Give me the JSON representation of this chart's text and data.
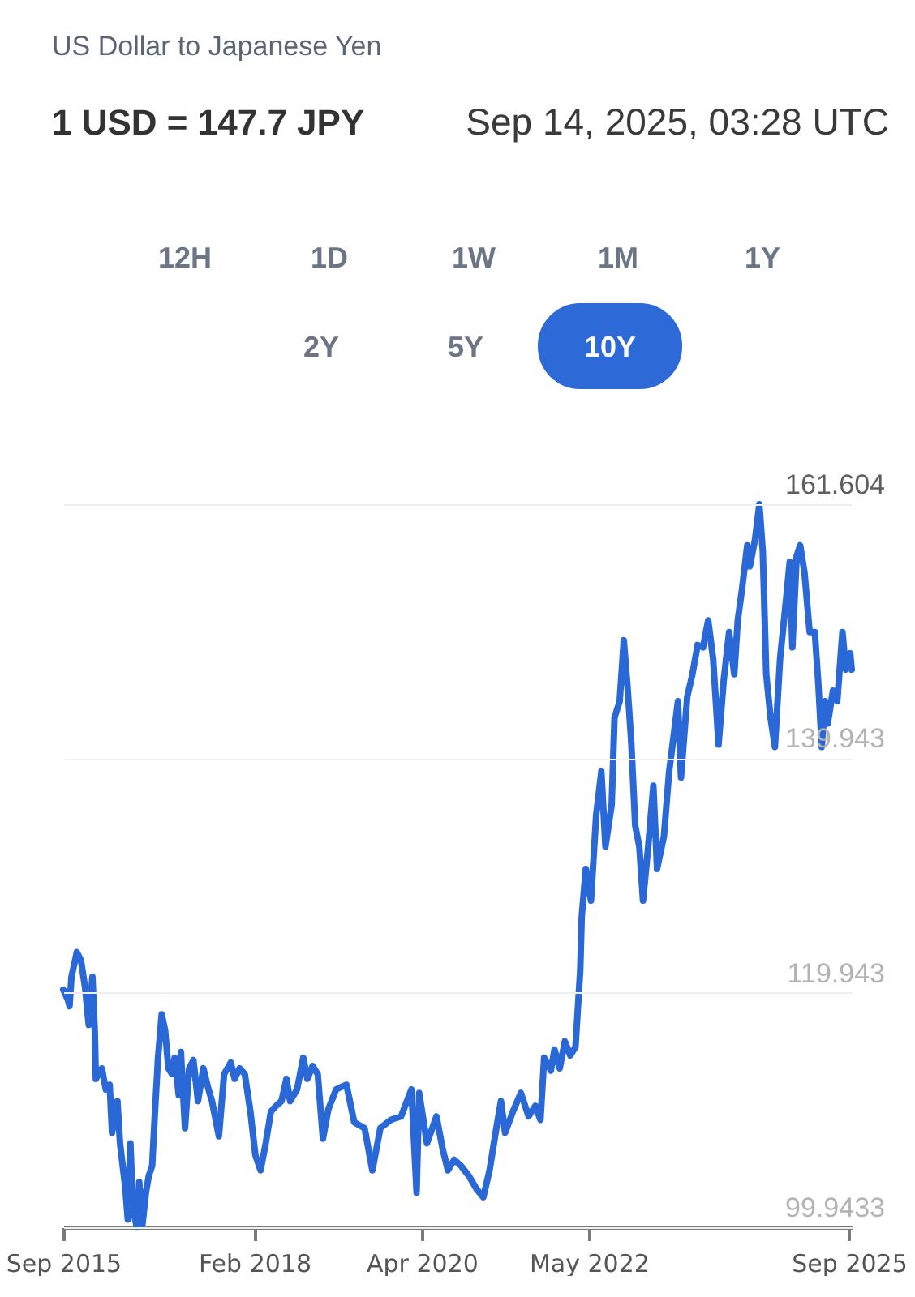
{
  "chart_data": {
    "type": "line",
    "title": "US Dollar to Japanese Yen",
    "subtitle": "1 USD = 147.7 JPY",
    "annotations": [
      "Sep 14, 2025, 03:28 UTC",
      "12H",
      "1D",
      "1W",
      "1M",
      "1Y",
      "2Y",
      "5Y",
      "10Y"
    ],
    "x": [
      "2015-09-14",
      "2015-10-06",
      "2015-10-13",
      "2015-10-22",
      "2015-11-16",
      "2015-12-05",
      "2015-12-24",
      "2016-01-10",
      "2016-01-27",
      "2016-02-07",
      "2016-02-12",
      "2016-03-11",
      "2016-03-29",
      "2016-04-16",
      "2016-04-27",
      "2016-05-22",
      "2016-06-03",
      "2016-06-27",
      "2016-07-09",
      "2016-07-21",
      "2016-08-02",
      "2016-08-19",
      "2016-08-31",
      "2016-09-15",
      "2016-10-01",
      "2016-10-14",
      "2016-10-30",
      "2016-11-12",
      "2016-11-26",
      "2016-12-13",
      "2016-12-29",
      "2017-01-13",
      "2017-01-30",
      "2017-02-11",
      "2017-03-02",
      "2017-03-12",
      "2017-03-31",
      "2017-04-19",
      "2017-05-09",
      "2017-05-30",
      "2017-06-24",
      "2017-07-18",
      "2017-08-03",
      "2017-09-04",
      "2017-09-28",
      "2017-10-29",
      "2017-11-16",
      "2017-12-09",
      "2018-01-02",
      "2018-01-28",
      "2018-02-20",
      "2018-03-16",
      "2018-04-09",
      "2018-05-03",
      "2018-05-27",
      "2018-06-21",
      "2018-07-14",
      "2018-07-31",
      "2018-09-01",
      "2018-09-30",
      "2018-10-19",
      "2018-11-12",
      "2018-12-06",
      "2018-12-30",
      "2019-01-24",
      "2019-03-01",
      "2019-04-18",
      "2019-05-24",
      "2019-07-11",
      "2019-08-16",
      "2019-09-22",
      "2019-11-09",
      "2019-12-27",
      "2020-02-13",
      "2020-03-08",
      "2020-03-20",
      "2020-04-25",
      "2020-06-08",
      "2020-07-07",
      "2020-07-31",
      "2020-08-29",
      "2020-09-29",
      "2020-11-06",
      "2020-12-11",
      "2021-01-11",
      "2021-02-09",
      "2021-03-17",
      "2021-04-03",
      "2021-04-22",
      "2021-05-28",
      "2021-07-04",
      "2021-08-09",
      "2021-09-09",
      "2021-10-03",
      "2021-10-20",
      "2021-11-20",
      "2021-12-07",
      "2021-12-31",
      "2022-01-24",
      "2022-02-18",
      "2022-03-14",
      "2022-04-05",
      "2022-04-12",
      "2022-05-01",
      "2022-05-25",
      "2022-06-18",
      "2022-07-12",
      "2022-07-31",
      "2022-08-29",
      "2022-09-11",
      "2022-10-05",
      "2022-10-24",
      "2022-11-10",
      "2022-11-27",
      "2022-12-16",
      "2023-01-04",
      "2023-01-21",
      "2023-02-14",
      "2023-03-10",
      "2023-03-27",
      "2023-04-28",
      "2023-05-22",
      "2023-06-07",
      "2023-07-02",
      "2023-07-16",
      "2023-08-14",
      "2023-09-07",
      "2023-10-01",
      "2023-10-26",
      "2023-11-19",
      "2023-12-12",
      "2024-01-06",
      "2024-01-30",
      "2024-02-24",
      "2024-03-19",
      "2024-04-04",
      "2024-04-24",
      "2024-05-18",
      "2024-05-30",
      "2024-06-23",
      "2024-07-13",
      "2024-07-29",
      "2024-08-14",
      "2024-09-03",
      "2024-09-23",
      "2024-10-17",
      "2024-11-14",
      "2024-12-01",
      "2024-12-13",
      "2025-01-02",
      "2025-01-18",
      "2025-02-07",
      "2025-03-03",
      "2025-03-27",
      "2025-04-13",
      "2025-04-28",
      "2025-05-14",
      "2025-05-26",
      "2025-06-19",
      "2025-07-09",
      "2025-08-02",
      "2025-08-18",
      "2025-09-07",
      "2025-09-14"
    ],
    "series": [
      {
        "color": "#2b68d7",
        "values": [
          120.2,
          119.3,
          118.8,
          121.3,
          123.4,
          122.7,
          120.4,
          117.2,
          121.3,
          116.7,
          112.6,
          113.5,
          111.7,
          112.1,
          108.0,
          110.7,
          107.1,
          103.4,
          100.6,
          107.1,
          101.5,
          100.0,
          103.8,
          100.2,
          102.9,
          104.3,
          105.2,
          109.8,
          114.4,
          118.1,
          116.7,
          113.5,
          113.0,
          114.4,
          111.2,
          114.9,
          108.4,
          113.5,
          114.2,
          110.7,
          113.5,
          111.7,
          110.7,
          107.7,
          113.0,
          114.0,
          112.6,
          113.5,
          113.0,
          109.8,
          106.1,
          104.8,
          107.1,
          109.8,
          110.3,
          110.7,
          112.6,
          110.7,
          111.7,
          114.4,
          112.6,
          113.7,
          113.0,
          107.5,
          110.0,
          111.7,
          112.1,
          108.9,
          108.4,
          104.8,
          108.4,
          109.1,
          109.4,
          111.7,
          102.9,
          111.4,
          107.1,
          109.4,
          106.6,
          104.8,
          105.7,
          105.2,
          104.3,
          103.2,
          102.5,
          104.8,
          108.9,
          110.7,
          108.0,
          109.8,
          111.4,
          109.4,
          110.3,
          109.1,
          114.4,
          113.3,
          115.1,
          113.5,
          115.8,
          114.6,
          115.3,
          121.8,
          126.4,
          130.5,
          127.8,
          135.1,
          138.8,
          132.4,
          136.0,
          143.4,
          144.8,
          150.0,
          146.1,
          141.5,
          134.2,
          132.4,
          127.8,
          132.4,
          137.6,
          130.5,
          133.3,
          138.8,
          141.1,
          144.8,
          138.3,
          145.2,
          147.1,
          149.6,
          149.4,
          151.7,
          148.4,
          141.1,
          146.6,
          150.7,
          147.1,
          151.7,
          154.4,
          158.1,
          156.3,
          158.6,
          161.6,
          157.6,
          147.1,
          143.4,
          140.9,
          148.4,
          153.5,
          156.7,
          149.4,
          157.2,
          158.1,
          155.8,
          150.7,
          150.7,
          146.1,
          140.9,
          144.8,
          142.9,
          145.7,
          144.8,
          150.7,
          147.5,
          148.9,
          147.5
        ]
      }
    ],
    "xlim": [
      "2015-09-14",
      "2025-09-14"
    ],
    "xticks": [
      {
        "value": "2015-09-14",
        "label": "Sep 2015"
      },
      {
        "value": "2018-02-15",
        "label": "Feb 2018"
      },
      {
        "value": "2020-04-01",
        "label": "Apr 2020"
      },
      {
        "value": "2022-05-15",
        "label": "May 2022"
      },
      {
        "value": "2025-09-01",
        "label": "Sep 2025"
      }
    ],
    "ylim": [
      99.9433,
      161.604
    ],
    "yticks": [
      99.9433,
      119.943,
      139.943,
      161.604
    ],
    "grid": "y",
    "line_style": "solid"
  }
}
